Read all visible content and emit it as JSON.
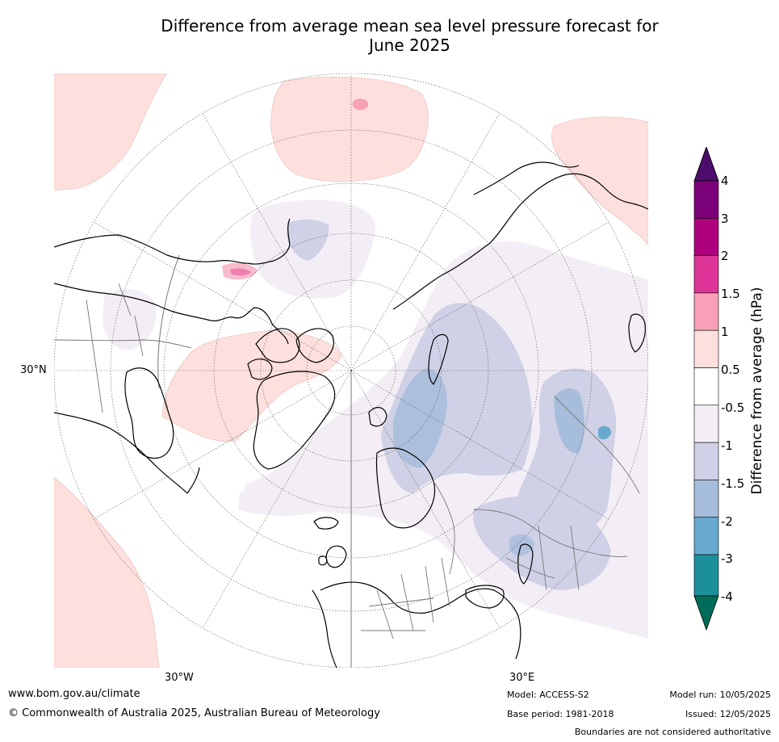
{
  "title": {
    "line1": "Difference from average mean sea level pressure forecast for",
    "line2": "June 2025"
  },
  "map": {
    "projection": "north polar stereographic",
    "graticule_labels": {
      "lat_30n": "30°N",
      "lon_30w": "30°W",
      "lon_30e": "30°E"
    },
    "land_color": "#ffffff",
    "coastline_color": "#000000",
    "border_color": "#777777"
  },
  "colorbar": {
    "title": "Difference from average (hPa)",
    "tick_labels": [
      "4",
      "3",
      "2",
      "1.5",
      "1",
      "0.5",
      "-0.5",
      "-1",
      "-1.5",
      "-2",
      "-3",
      "-4"
    ],
    "colors_top_to_bottom": [
      "#4b0c6b",
      "#7a0177",
      "#ae017e",
      "#dd3497",
      "#f7a0b8",
      "#fde0dd",
      "#ffffff",
      "#f3eef5",
      "#d0d1e6",
      "#a6bddb",
      "#67a9cf",
      "#1c9099",
      "#016c59"
    ]
  },
  "footer": {
    "website": "www.bom.gov.au/climate",
    "copyright": "© Commonwealth of Australia 2025, Australian Bureau of Meteorology",
    "model": "Model: ACCESS-S2",
    "base_period": "Base period: 1981-2018",
    "model_run": "Model run: 10/05/2025",
    "issued": "Issued: 12/05/2025",
    "disclaimer": "Boundaries are not considered authoritative"
  }
}
